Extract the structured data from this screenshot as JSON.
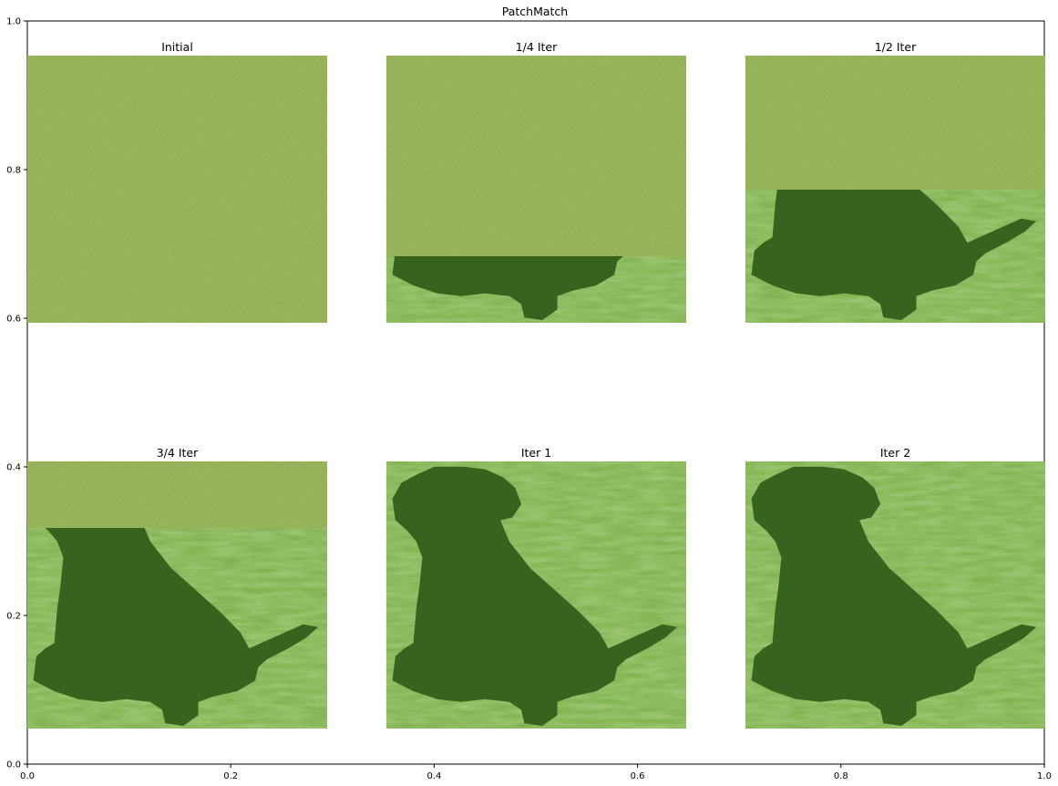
{
  "chart_data": {
    "type": "image-grid",
    "title": "PatchMatch",
    "xlim": [
      0,
      1
    ],
    "ylim": [
      0,
      1
    ],
    "xticks": [
      "0.0",
      "0.2",
      "0.4",
      "0.6",
      "0.8",
      "1.0"
    ],
    "yticks": [
      "0.0",
      "0.2",
      "0.4",
      "0.6",
      "0.8",
      "1.0"
    ],
    "panels": [
      {
        "title": "Initial",
        "reconstructed_fraction": 0.0
      },
      {
        "title": "1/4 Iter",
        "reconstructed_fraction": 0.25
      },
      {
        "title": "1/2 Iter",
        "reconstructed_fraction": 0.5
      },
      {
        "title": "3/4 Iter",
        "reconstructed_fraction": 0.75
      },
      {
        "title": "Iter 1",
        "reconstructed_fraction": 1.0
      },
      {
        "title": "Iter 2",
        "reconstructed_fraction": 1.0
      }
    ],
    "colors": {
      "noise_green": "#8aa94a",
      "grass_green": "#7aac48",
      "dog_green": "#3c6b22",
      "dog_dark": "#2f5519",
      "axis": "#000000"
    }
  }
}
